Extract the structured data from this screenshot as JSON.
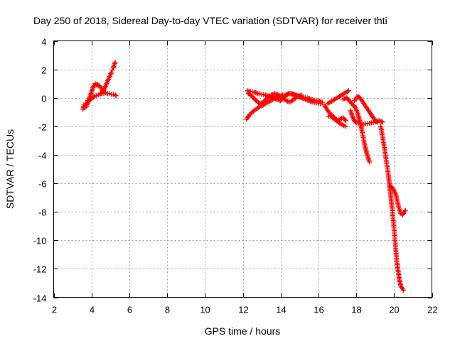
{
  "chart_data": {
    "type": "scatter",
    "title": "Day 250 of 2018, Sidereal Day-to-day VTEC variation (SDTVAR) for receiver thti",
    "xlabel": "GPS time / hours",
    "ylabel": "SDTVAR / TECUs",
    "xlim": [
      2,
      22
    ],
    "ylim": [
      -14,
      4
    ],
    "xticks": [
      "2",
      "4",
      "6",
      "8",
      "10",
      "12",
      "14",
      "16",
      "18",
      "20",
      "22"
    ],
    "yticks": [
      "4",
      "2",
      "0",
      "-2",
      "-4",
      "-6",
      "-8",
      "-10",
      "-12",
      "-14"
    ],
    "grid": true,
    "marker": "+",
    "color": "#ff0000",
    "series": [
      {
        "name": "SDTVAR",
        "segments": [
          [
            [
              3.55,
              -0.8
            ],
            [
              3.6,
              -0.5
            ],
            [
              3.65,
              -0.7
            ],
            [
              3.7,
              -0.4
            ],
            [
              3.75,
              -0.6
            ],
            [
              3.8,
              -0.2
            ],
            [
              3.85,
              -0.3
            ],
            [
              3.9,
              0.0
            ],
            [
              3.95,
              0.2
            ],
            [
              4.0,
              0.4
            ],
            [
              4.05,
              0.6
            ],
            [
              4.1,
              0.8
            ],
            [
              4.15,
              0.85
            ],
            [
              4.2,
              1.0
            ],
            [
              4.25,
              0.9
            ],
            [
              4.3,
              0.95
            ],
            [
              4.35,
              0.9
            ],
            [
              4.4,
              0.85
            ],
            [
              4.45,
              0.8
            ],
            [
              4.5,
              0.7
            ],
            [
              4.55,
              0.6
            ],
            [
              4.6,
              0.5
            ]
          ],
          [
            [
              3.65,
              -0.6
            ],
            [
              3.75,
              -0.4
            ],
            [
              3.85,
              -0.2
            ],
            [
              3.95,
              -0.1
            ],
            [
              4.05,
              0.0
            ],
            [
              4.15,
              0.1
            ],
            [
              4.25,
              0.15
            ],
            [
              4.35,
              0.2
            ],
            [
              4.45,
              0.25
            ],
            [
              4.55,
              0.3
            ],
            [
              4.65,
              0.3
            ],
            [
              4.75,
              0.35
            ],
            [
              4.85,
              0.3
            ],
            [
              4.95,
              0.3
            ],
            [
              5.05,
              0.25
            ],
            [
              5.15,
              0.25
            ],
            [
              5.25,
              0.2
            ],
            [
              5.3,
              0.15
            ]
          ],
          [
            [
              4.5,
              0.3
            ],
            [
              4.6,
              0.45
            ],
            [
              4.7,
              0.7
            ],
            [
              4.8,
              1.0
            ],
            [
              4.85,
              1.2
            ],
            [
              4.9,
              1.3
            ],
            [
              4.95,
              1.5
            ],
            [
              5.0,
              1.6
            ],
            [
              5.05,
              1.8
            ],
            [
              5.1,
              1.95
            ],
            [
              5.15,
              2.1
            ],
            [
              5.2,
              2.3
            ],
            [
              5.25,
              2.5
            ]
          ],
          [
            [
              12.25,
              0.5
            ],
            [
              12.4,
              0.45
            ],
            [
              12.6,
              0.4
            ],
            [
              12.8,
              0.3
            ],
            [
              13.0,
              0.25
            ],
            [
              13.2,
              0.2
            ],
            [
              13.4,
              0.1
            ],
            [
              13.6,
              0.0
            ],
            [
              13.8,
              -0.1
            ],
            [
              14.0,
              -0.2
            ],
            [
              14.2,
              0.1
            ],
            [
              14.4,
              0.3
            ],
            [
              14.6,
              0.3
            ],
            [
              14.8,
              0.2
            ],
            [
              15.0,
              0.1
            ],
            [
              15.2,
              0.05
            ],
            [
              15.4,
              0.0
            ],
            [
              15.6,
              -0.1
            ],
            [
              15.8,
              -0.2
            ],
            [
              16.0,
              -0.2
            ],
            [
              16.2,
              -0.3
            ]
          ],
          [
            [
              12.2,
              -1.5
            ],
            [
              12.35,
              -1.2
            ],
            [
              12.5,
              -1.0
            ],
            [
              12.7,
              -0.8
            ],
            [
              12.9,
              -0.6
            ],
            [
              13.1,
              -0.5
            ],
            [
              13.3,
              -0.3
            ],
            [
              13.5,
              -0.2
            ],
            [
              13.7,
              0.0
            ],
            [
              13.9,
              0.1
            ],
            [
              14.1,
              0.2
            ],
            [
              14.3,
              0.2
            ],
            [
              14.5,
              0.3
            ],
            [
              14.7,
              0.2
            ],
            [
              14.9,
              0.1
            ],
            [
              15.1,
              0.0
            ],
            [
              15.3,
              -0.1
            ],
            [
              15.5,
              -0.2
            ],
            [
              15.7,
              -0.3
            ],
            [
              15.9,
              -0.35
            ],
            [
              16.1,
              -0.4
            ]
          ],
          [
            [
              12.3,
              0.3
            ],
            [
              12.5,
              0.1
            ],
            [
              12.7,
              -0.2
            ],
            [
              12.9,
              -0.4
            ],
            [
              13.1,
              -0.3
            ],
            [
              13.3,
              0.0
            ],
            [
              13.5,
              0.2
            ],
            [
              13.7,
              0.3
            ],
            [
              13.9,
              0.2
            ],
            [
              14.1,
              0.0
            ],
            [
              14.3,
              -0.2
            ],
            [
              14.5,
              -0.3
            ],
            [
              14.7,
              -0.1
            ],
            [
              14.9,
              0.1
            ],
            [
              15.1,
              0.2
            ]
          ],
          [
            [
              16.3,
              -0.5
            ],
            [
              16.45,
              -0.8
            ],
            [
              16.6,
              -1.1
            ],
            [
              16.75,
              -1.4
            ],
            [
              16.9,
              -1.55
            ],
            [
              17.05,
              -1.7
            ],
            [
              17.2,
              -1.85
            ],
            [
              17.35,
              -1.95
            ],
            [
              17.45,
              -2.0
            ]
          ],
          [
            [
              16.55,
              -1.3
            ],
            [
              16.7,
              -1.2
            ],
            [
              16.85,
              -1.4
            ],
            [
              17.0,
              -1.6
            ],
            [
              17.15,
              -1.5
            ],
            [
              17.3,
              -1.4
            ],
            [
              17.45,
              -1.6
            ]
          ],
          [
            [
              16.5,
              -0.4
            ],
            [
              17.6,
              0.5
            ]
          ],
          [
            [
              17.3,
              -0.1
            ],
            [
              17.5,
              0.0
            ],
            [
              17.7,
              -0.3
            ],
            [
              17.9,
              -0.6
            ],
            [
              18.0,
              -0.8
            ],
            [
              18.1,
              -1.2
            ],
            [
              18.2,
              -1.7
            ],
            [
              18.3,
              -2.3
            ],
            [
              18.4,
              -3.0
            ],
            [
              18.5,
              -3.6
            ],
            [
              18.6,
              -4.1
            ],
            [
              18.7,
              -4.5
            ]
          ],
          [
            [
              17.7,
              -0.9
            ],
            [
              17.8,
              -1.3
            ],
            [
              17.9,
              -1.6
            ],
            [
              18.0,
              -1.75
            ],
            [
              18.2,
              -1.8
            ],
            [
              18.4,
              -1.85
            ],
            [
              18.6,
              -1.8
            ],
            [
              18.8,
              -1.75
            ],
            [
              19.0,
              -1.7
            ],
            [
              19.2,
              -1.6
            ],
            [
              19.4,
              -1.7
            ]
          ],
          [
            [
              17.9,
              -0.2
            ],
            [
              18.0,
              0.0
            ],
            [
              18.1,
              0.1
            ],
            [
              18.2,
              0.0
            ],
            [
              18.3,
              -0.2
            ],
            [
              18.4,
              -0.4
            ],
            [
              18.5,
              -0.6
            ],
            [
              18.6,
              -0.8
            ],
            [
              18.7,
              -1.0
            ],
            [
              18.8,
              -1.2
            ],
            [
              18.9,
              -1.4
            ],
            [
              19.0,
              -1.6
            ],
            [
              19.1,
              -1.7
            ]
          ],
          [
            [
              19.3,
              -2.0
            ],
            [
              19.4,
              -2.8
            ],
            [
              19.5,
              -3.6
            ],
            [
              19.6,
              -4.5
            ],
            [
              19.7,
              -5.4
            ],
            [
              19.75,
              -6.0
            ],
            [
              19.8,
              -6.6
            ],
            [
              19.85,
              -7.2
            ],
            [
              19.9,
              -7.8
            ],
            [
              19.95,
              -8.5
            ],
            [
              20.0,
              -9.2
            ],
            [
              20.05,
              -10.0
            ],
            [
              20.1,
              -10.8
            ],
            [
              20.15,
              -11.5
            ],
            [
              20.2,
              -12.0
            ],
            [
              20.25,
              -12.5
            ],
            [
              20.3,
              -12.9
            ],
            [
              20.35,
              -13.2
            ],
            [
              20.45,
              -13.4
            ],
            [
              20.5,
              -13.5
            ]
          ],
          [
            [
              19.8,
              -6.2
            ],
            [
              19.9,
              -6.3
            ],
            [
              20.0,
              -6.5
            ],
            [
              20.1,
              -6.8
            ],
            [
              20.15,
              -7.1
            ],
            [
              20.2,
              -7.4
            ],
            [
              20.25,
              -7.7
            ],
            [
              20.3,
              -7.9
            ],
            [
              20.35,
              -8.1
            ],
            [
              20.45,
              -8.2
            ],
            [
              20.55,
              -8.0
            ],
            [
              20.6,
              -7.9
            ]
          ]
        ]
      }
    ]
  }
}
